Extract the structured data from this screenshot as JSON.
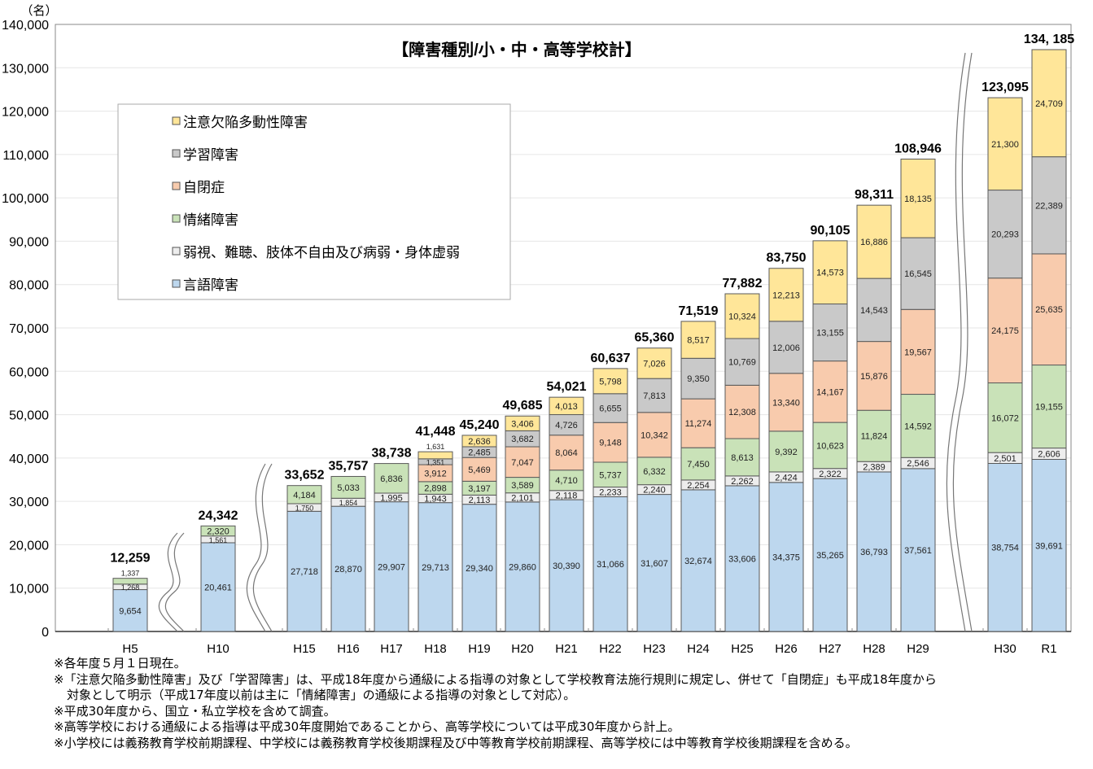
{
  "chart_data": {
    "type": "bar",
    "stacked": true,
    "title": "【障害種別/小・中・高等学校計】",
    "yunit": "（名）",
    "ylim": [
      0,
      140000
    ],
    "yticks": [
      "0",
      "10,000",
      "20,000",
      "30,000",
      "40,000",
      "50,000",
      "60,000",
      "70,000",
      "80,000",
      "90,000",
      "100,000",
      "110,000",
      "120,000",
      "130,000",
      "140,000"
    ],
    "grid": true,
    "legend_position": "top-left",
    "categories": [
      "H5",
      "H10",
      "H15",
      "H16",
      "H17",
      "H18",
      "H19",
      "H20",
      "H21",
      "H22",
      "H23",
      "H24",
      "H25",
      "H26",
      "H27",
      "H28",
      "H29",
      "H30",
      "R1"
    ],
    "axis_breaks_after": [
      "H5",
      "H10",
      "H29"
    ],
    "series": [
      {
        "name": "言語障害",
        "color": "#bdd7ee",
        "values": [
          9654,
          20461,
          27718,
          28870,
          29907,
          29713,
          29340,
          29860,
          30390,
          31066,
          31607,
          32674,
          33606,
          34375,
          35265,
          36793,
          37561,
          38754,
          39691
        ],
        "labels": [
          "9,654",
          "20,461",
          "27,718",
          "28,870",
          "29,907",
          "29,713",
          "29,340",
          "29,860",
          "30,390",
          "31,066",
          "31,607",
          "32,674",
          "33,606",
          "34,375",
          "35,265",
          "36,793",
          "37,561",
          "38,754",
          "39,691"
        ]
      },
      {
        "name": "弱視、難聴、肢体不自由及び病弱・身体虚弱",
        "color": "#ededed",
        "values": [
          1268,
          1561,
          1750,
          1854,
          1995,
          1943,
          2113,
          2101,
          2118,
          2233,
          2240,
          2254,
          2262,
          2424,
          2322,
          2389,
          2546,
          2501,
          2606
        ],
        "labels": [
          "1,268",
          "1,561",
          "1,750",
          "1,854",
          "1,995",
          "1,943",
          "2,113",
          "2,101",
          "2,118",
          "2,233",
          "2,240",
          "2,254",
          "2,262",
          "2,424",
          "2,322",
          "2,389",
          "2,546",
          "2,501",
          "2,606"
        ]
      },
      {
        "name": "情緒障害",
        "color": "#c9e2b8",
        "values": [
          1337,
          2320,
          4184,
          5033,
          6836,
          2898,
          3197,
          3589,
          4710,
          5737,
          6332,
          7450,
          8613,
          9392,
          10623,
          11824,
          14592,
          16072,
          19155
        ],
        "labels": [
          "1,337",
          "2,320",
          "4,184",
          "5,033",
          "6,836",
          "2,898",
          "3,197",
          "3,589",
          "4,710",
          "5,737",
          "6,332",
          "7,450",
          "8,613",
          "9,392",
          "10,623",
          "11,824",
          "14,592",
          "16,072",
          "19,155"
        ]
      },
      {
        "name": "自閉症",
        "color": "#f8cbad",
        "values": [
          null,
          null,
          null,
          null,
          null,
          3912,
          5469,
          7047,
          8064,
          9148,
          10342,
          11274,
          12308,
          13340,
          14167,
          15876,
          19567,
          24175,
          25635
        ],
        "labels": [
          "",
          "",
          "",
          "",
          "",
          "3,912",
          "5,469",
          "7,047",
          "8,064",
          "9,148",
          "10,342",
          "11,274",
          "12,308",
          "13,340",
          "14,167",
          "15,876",
          "19,567",
          "24,175",
          "25,635"
        ]
      },
      {
        "name": "学習障害",
        "color": "#c9c9c9",
        "values": [
          null,
          null,
          null,
          null,
          null,
          1351,
          2485,
          3682,
          4726,
          6655,
          7813,
          9350,
          10769,
          12006,
          13155,
          14543,
          16545,
          20293,
          22389
        ],
        "labels": [
          "",
          "",
          "",
          "",
          "",
          "1,351",
          "2,485",
          "3,682",
          "4,726",
          "6,655",
          "7,813",
          "9,350",
          "10,769",
          "12,006",
          "13,155",
          "14,543",
          "16,545",
          "20,293",
          "22,389"
        ]
      },
      {
        "name": "注意欠陥多動性障害",
        "color": "#ffe699",
        "values": [
          null,
          null,
          null,
          null,
          null,
          1631,
          2636,
          3406,
          4013,
          5798,
          7026,
          8517,
          10324,
          12213,
          14573,
          16886,
          18135,
          21300,
          24709
        ],
        "labels": [
          "",
          "",
          "",
          "",
          "",
          "1,631",
          "2,636",
          "3,406",
          "4,013",
          "5,798",
          "7,026",
          "8,517",
          "10,324",
          "12,213",
          "14,573",
          "16,886",
          "18,135",
          "21,300",
          "24,709"
        ]
      }
    ],
    "totals": [
      12259,
      24342,
      33652,
      35757,
      38738,
      41448,
      45240,
      49685,
      54021,
      60637,
      65360,
      71519,
      77882,
      83750,
      90105,
      98311,
      108946,
      123095,
      134185
    ],
    "total_labels": [
      "12,259",
      "24,342",
      "33,652",
      "35,757",
      "38,738",
      "41,448",
      "45,240",
      "49,685",
      "54,021",
      "60,637",
      "65,360",
      "71,519",
      "77,882",
      "83,750",
      "90,105",
      "98,311",
      "108,946",
      "123,095",
      "134, 185"
    ]
  },
  "notes": [
    "※各年度５月１日現在。",
    "※「注意欠陥多動性障害」及び「学習障害」は、平成18年度から通級による指導の対象として学校教育法施行規則に規定し、併せて「自閉症」も平成18年度から",
    "対象として明示（平成17年度以前は主に「情緒障害」の通級による指導の対象として対応）。",
    "※平成30年度から、国立・私立学校を含めて調査。",
    "※高等学校における通級による指導は平成30年度開始であることから、高等学校については平成30年度から計上。",
    "※小学校には義務教育学校前期課程、中学校には義務教育学校後期課程及び中等教育学校前期課程、高等学校には中等教育学校後期課程を含める。"
  ]
}
